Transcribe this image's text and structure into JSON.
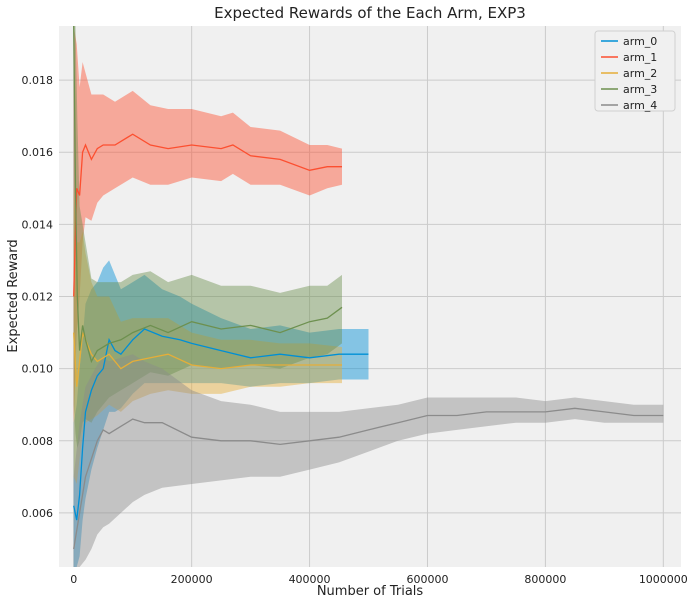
{
  "chart_data": {
    "type": "line",
    "title": "Expected Rewards of the Each Arm, EXP3",
    "xlabel": "Number of Trials",
    "ylabel": "Expected Reward",
    "xlim": [
      -25000,
      1030000
    ],
    "ylim": [
      0.0045,
      0.0195
    ],
    "x_ticks": [
      0,
      200000,
      400000,
      600000,
      800000,
      1000000
    ],
    "x_tick_labels": [
      "0",
      "200000",
      "400000",
      "600000",
      "800000",
      "1000000"
    ],
    "y_ticks": [
      0.006,
      0.008,
      0.01,
      0.012,
      0.014,
      0.016,
      0.018
    ],
    "y_tick_labels": [
      "0.006",
      "0.008",
      "0.010",
      "0.012",
      "0.014",
      "0.016",
      "0.018"
    ],
    "grid": true,
    "legend_position": "top-right",
    "background": "#f0f0f0",
    "grid_color": "#cbcbcb",
    "series": [
      {
        "name": "arm_0",
        "color": "#008fd5",
        "x": [
          0,
          5000,
          10000,
          15000,
          20000,
          30000,
          40000,
          50000,
          60000,
          70000,
          80000,
          100000,
          120000,
          150000,
          180000,
          200000,
          250000,
          300000,
          350000,
          400000,
          450000,
          500000
        ],
        "y": [
          0.0062,
          0.0058,
          0.0065,
          0.0078,
          0.0088,
          0.0094,
          0.0098,
          0.01,
          0.0108,
          0.0105,
          0.0104,
          0.0108,
          0.0111,
          0.0109,
          0.0108,
          0.0107,
          0.0105,
          0.0103,
          0.0104,
          0.0103,
          0.0104,
          0.0104
        ],
        "lower": [
          0.0045,
          0.0045,
          0.0048,
          0.0058,
          0.0064,
          0.0072,
          0.0078,
          0.0083,
          0.0088,
          0.0088,
          0.0089,
          0.0093,
          0.0096,
          0.0096,
          0.0096,
          0.0096,
          0.0096,
          0.0095,
          0.0096,
          0.0096,
          0.0097,
          0.0097
        ],
        "upper": [
          0.0085,
          0.009,
          0.01,
          0.0108,
          0.0118,
          0.0122,
          0.0124,
          0.0128,
          0.013,
          0.0126,
          0.0122,
          0.0124,
          0.0126,
          0.0122,
          0.012,
          0.0118,
          0.0114,
          0.0111,
          0.0112,
          0.011,
          0.0111,
          0.0111
        ]
      },
      {
        "name": "arm_1",
        "color": "#fc4f30",
        "x": [
          0,
          5000,
          10000,
          15000,
          20000,
          30000,
          40000,
          50000,
          70000,
          100000,
          130000,
          160000,
          200000,
          250000,
          270000,
          300000,
          350000,
          400000,
          430000,
          455000
        ],
        "y": [
          0.012,
          0.015,
          0.0148,
          0.016,
          0.0162,
          0.0158,
          0.0161,
          0.0162,
          0.0162,
          0.0165,
          0.0162,
          0.0161,
          0.0162,
          0.0161,
          0.0162,
          0.0159,
          0.0158,
          0.0155,
          0.0156,
          0.0156
        ],
        "lower": [
          0.0085,
          0.011,
          0.012,
          0.0135,
          0.0142,
          0.0141,
          0.0146,
          0.0148,
          0.015,
          0.0153,
          0.0151,
          0.0151,
          0.0153,
          0.0152,
          0.0154,
          0.0151,
          0.0151,
          0.0148,
          0.015,
          0.0151
        ],
        "upper": [
          0.0195,
          0.019,
          0.0178,
          0.0185,
          0.0182,
          0.0176,
          0.0176,
          0.0176,
          0.0174,
          0.0177,
          0.0173,
          0.0172,
          0.0172,
          0.017,
          0.0171,
          0.0167,
          0.0166,
          0.0162,
          0.0162,
          0.0161
        ]
      },
      {
        "name": "arm_2",
        "color": "#e5ae38",
        "x": [
          0,
          5000,
          10000,
          15000,
          20000,
          30000,
          40000,
          60000,
          80000,
          100000,
          130000,
          160000,
          200000,
          250000,
          300000,
          350000,
          400000,
          455000
        ],
        "y": [
          0.011,
          0.0095,
          0.0102,
          0.011,
          0.0108,
          0.0104,
          0.0102,
          0.0104,
          0.01,
          0.0102,
          0.0103,
          0.0104,
          0.0101,
          0.01,
          0.0101,
          0.0101,
          0.0101,
          0.0101
        ],
        "lower": [
          0.007,
          0.0068,
          0.0075,
          0.0082,
          0.0085,
          0.0086,
          0.0087,
          0.009,
          0.0088,
          0.0091,
          0.0093,
          0.0094,
          0.0093,
          0.0093,
          0.0095,
          0.0095,
          0.0096,
          0.0096
        ],
        "upper": [
          0.015,
          0.0135,
          0.0135,
          0.0138,
          0.0132,
          0.0124,
          0.012,
          0.012,
          0.0113,
          0.0114,
          0.0114,
          0.0114,
          0.011,
          0.0108,
          0.0108,
          0.0107,
          0.0107,
          0.0106
        ]
      },
      {
        "name": "arm_3",
        "color": "#6d904f",
        "x": [
          0,
          3000,
          6000,
          10000,
          15000,
          20000,
          30000,
          40000,
          60000,
          80000,
          100000,
          130000,
          160000,
          200000,
          250000,
          300000,
          350000,
          400000,
          430000,
          455000
        ],
        "y": [
          0.0195,
          0.015,
          0.012,
          0.0105,
          0.0112,
          0.0108,
          0.0102,
          0.0105,
          0.0107,
          0.0108,
          0.011,
          0.0112,
          0.011,
          0.0113,
          0.0111,
          0.0112,
          0.011,
          0.0113,
          0.0114,
          0.0117
        ],
        "lower": [
          0.009,
          0.0082,
          0.0078,
          0.008,
          0.0085,
          0.0086,
          0.0085,
          0.0088,
          0.0092,
          0.0094,
          0.0096,
          0.0099,
          0.0098,
          0.0101,
          0.01,
          0.0101,
          0.01,
          0.0103,
          0.0104,
          0.0107
        ],
        "upper": [
          0.0195,
          0.0195,
          0.017,
          0.0145,
          0.014,
          0.0135,
          0.0125,
          0.0124,
          0.0124,
          0.0124,
          0.0126,
          0.0127,
          0.0124,
          0.0126,
          0.0123,
          0.0123,
          0.0121,
          0.0123,
          0.0123,
          0.0126
        ]
      },
      {
        "name": "arm_4",
        "color": "#8b8b8b",
        "x": [
          0,
          10000,
          20000,
          30000,
          40000,
          50000,
          60000,
          80000,
          100000,
          120000,
          150000,
          200000,
          250000,
          300000,
          350000,
          400000,
          450000,
          500000,
          550000,
          600000,
          650000,
          700000,
          750000,
          800000,
          850000,
          900000,
          950000,
          1000000
        ],
        "y": [
          0.005,
          0.006,
          0.007,
          0.0075,
          0.008,
          0.0083,
          0.0082,
          0.0084,
          0.0086,
          0.0085,
          0.0085,
          0.0081,
          0.008,
          0.008,
          0.0079,
          0.008,
          0.0081,
          0.0083,
          0.0085,
          0.0087,
          0.0087,
          0.0088,
          0.0088,
          0.0088,
          0.0089,
          0.0088,
          0.0087,
          0.0087
        ],
        "lower": [
          0.0045,
          0.0045,
          0.0047,
          0.005,
          0.0054,
          0.0056,
          0.0057,
          0.006,
          0.0063,
          0.0065,
          0.0067,
          0.0068,
          0.0069,
          0.007,
          0.007,
          0.0072,
          0.0074,
          0.0077,
          0.008,
          0.0082,
          0.0083,
          0.0084,
          0.0085,
          0.0085,
          0.0086,
          0.0085,
          0.0085,
          0.0085
        ],
        "upper": [
          0.007,
          0.0085,
          0.0095,
          0.0098,
          0.0101,
          0.0103,
          0.0102,
          0.0103,
          0.0104,
          0.0102,
          0.01,
          0.0094,
          0.0091,
          0.009,
          0.0088,
          0.0088,
          0.0088,
          0.0089,
          0.009,
          0.0092,
          0.0092,
          0.0092,
          0.0092,
          0.0091,
          0.0092,
          0.0091,
          0.009,
          0.009
        ]
      }
    ]
  }
}
